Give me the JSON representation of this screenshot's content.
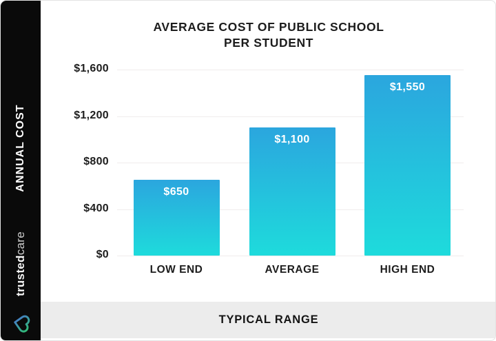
{
  "sidebar": {
    "vertical_label": "ANNUAL COST",
    "brand": {
      "name_bold": "trusted",
      "name_light": "care"
    },
    "bg_color": "#0a0a0a"
  },
  "chart_data": {
    "type": "bar",
    "title_line1": "AVERAGE COST OF PUBLIC SCHOOL",
    "title_line2": "PER STUDENT",
    "categories": [
      "LOW END",
      "AVERAGE",
      "HIGH END"
    ],
    "values": [
      650,
      1100,
      1550
    ],
    "value_labels": [
      "$650",
      "$1,100",
      "$1,550"
    ],
    "y_ticks": [
      "$1,600",
      "$1,200",
      "$800",
      "$400",
      "$0"
    ],
    "y_tick_values": [
      1600,
      1200,
      800,
      400,
      0
    ],
    "ylim": [
      0,
      1600
    ],
    "xlabel": "TYPICAL RANGE",
    "ylabel": "ANNUAL COST",
    "grid": true,
    "legend": "none",
    "bar_gradient_top": "#2ba6de",
    "bar_gradient_bottom": "#1edbdc"
  },
  "footer": {
    "label": "TYPICAL RANGE",
    "bg_color": "#ececec"
  },
  "logo_colors": {
    "start": "#4a6fd8",
    "end": "#2fbf71"
  }
}
